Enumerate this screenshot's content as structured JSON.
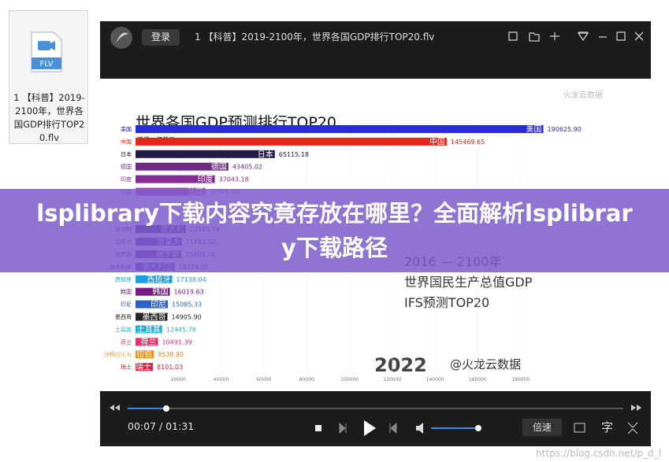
{
  "file_tile": {
    "icon_label": "FLV",
    "name": "1 【科普】2019-2100年，世界各国GDP排行TOP20.flv"
  },
  "player": {
    "login": "登录",
    "title": "1 【科普】2019-2100年，世界各国GDP排行TOP20.flv",
    "time": "00:07 / 01:31",
    "speed": "倍速",
    "subtitle_button": "字"
  },
  "video": {
    "watermark": "火龙云数据",
    "side_lines": [
      "2016 — 2100年",
      "世界国民生产总值GDP",
      "IFS预测TOP20"
    ],
    "year": "2022",
    "credit": "@火龙云数据",
    "chart": {
      "type": "bar",
      "title": "世界各国GDP预测排行TOP20",
      "unit": "单位：亿美元",
      "categories": [
        "美国",
        "中国",
        "日本",
        "德国",
        "印度",
        "法国",
        null,
        null,
        "意大利",
        "加拿大",
        "俄罗斯",
        "澳大利亚",
        "西班牙",
        "韩国",
        "印尼",
        "墨西哥",
        "土耳其",
        "荷兰",
        "沙特阿拉伯",
        "瑞士"
      ],
      "values": [
        190625.9,
        145469.65,
        65115.18,
        43405.02,
        37043.18,
        32565.0,
        null,
        null,
        23383.74,
        21683.02,
        21404.38,
        18279.3,
        17138.04,
        16019.63,
        15085.33,
        14905.9,
        12445.78,
        10491.39,
        8538.8,
        8101.03
      ],
      "value_labels": [
        "190625.90",
        "145469.65",
        "65115.18",
        "43405.02",
        "37043.18",
        "32565.00",
        null,
        null,
        "23383.74",
        "21683.02",
        "21404.38",
        "18279.30",
        "17138.04",
        "16019.63",
        "15085.33",
        "14905.90",
        "12445.78",
        "10491.39",
        "8538.80",
        "8101.03"
      ],
      "colors": [
        "#2b2bd6",
        "#e5271d",
        "#1f1a48",
        "#6f2a86",
        "#862a95",
        "#b44aa8",
        null,
        null,
        "#3a2a7a",
        "#4a3aa0",
        "#7a2a9a",
        "#4a2aa0",
        "#1c9fe0",
        "#7a1a88",
        "#2a60c8",
        "#262626",
        "#1ab2e0",
        "#e8306a",
        "#f08c20",
        "#e02040"
      ],
      "xlim": [
        0,
        200000
      ],
      "xticks": [
        20000,
        40000,
        60000,
        80000,
        100000,
        120000,
        140000,
        160000,
        180000
      ]
    }
  },
  "banner": {
    "title": "lsplibrary下载内容究竟存放在哪里？全面解析lsplibrary下载路径"
  },
  "footer": {
    "watermark": "https://blog.csdn.net/p_d_l"
  }
}
